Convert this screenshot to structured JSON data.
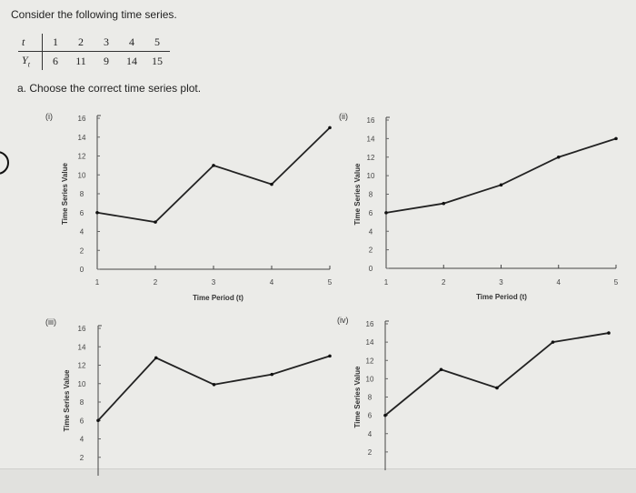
{
  "intro": "Consider the following time series.",
  "table": {
    "t_label": "t",
    "y_label": "Y",
    "y_sub": "t",
    "t": [
      1,
      2,
      3,
      4,
      5
    ],
    "y": [
      6,
      11,
      9,
      14,
      15
    ]
  },
  "question": "a. Choose the correct time series plot.",
  "chart_data": [
    {
      "type": "line",
      "option": "(i)",
      "x": [
        1,
        2,
        3,
        4,
        5
      ],
      "values": [
        6,
        5,
        11,
        9,
        15
      ],
      "xlabel": "Time Period (t)",
      "ylabel": "Time Series Value",
      "ylim": [
        0,
        16
      ],
      "yticks": [
        0,
        2,
        4,
        6,
        8,
        10,
        12,
        14,
        16
      ],
      "xticks": [
        1,
        2,
        3,
        4,
        5
      ],
      "grid": false
    },
    {
      "type": "line",
      "option": "(ii)",
      "x": [
        1,
        2,
        3,
        4,
        5
      ],
      "values": [
        6,
        7,
        9,
        12,
        14
      ],
      "xlabel": "Time Period (t)",
      "ylabel": "Time Series Value",
      "ylim": [
        0,
        16
      ],
      "yticks": [
        0,
        2,
        4,
        6,
        8,
        10,
        12,
        14,
        16
      ],
      "xticks": [
        1,
        2,
        3,
        4,
        5
      ],
      "grid": false
    },
    {
      "type": "line",
      "option": "(iii)",
      "x": [
        1,
        2,
        3,
        4,
        5
      ],
      "values": [
        6,
        12.8,
        9.9,
        11,
        13
      ],
      "xlabel": "",
      "ylabel": "Time Series Value",
      "ylim": [
        0,
        16
      ],
      "yticks": [
        2,
        4,
        6,
        8,
        10,
        12,
        14,
        16
      ],
      "xticks": [],
      "grid": false
    },
    {
      "type": "line",
      "option": "(iv)",
      "x": [
        1,
        2,
        3,
        4,
        5
      ],
      "values": [
        6,
        11,
        9,
        14,
        15
      ],
      "xlabel": "",
      "ylabel": "Time Series Value",
      "ylim": [
        0,
        16
      ],
      "yticks": [
        2,
        4,
        6,
        8,
        10,
        12,
        14,
        16
      ],
      "xticks": [],
      "grid": false
    }
  ]
}
